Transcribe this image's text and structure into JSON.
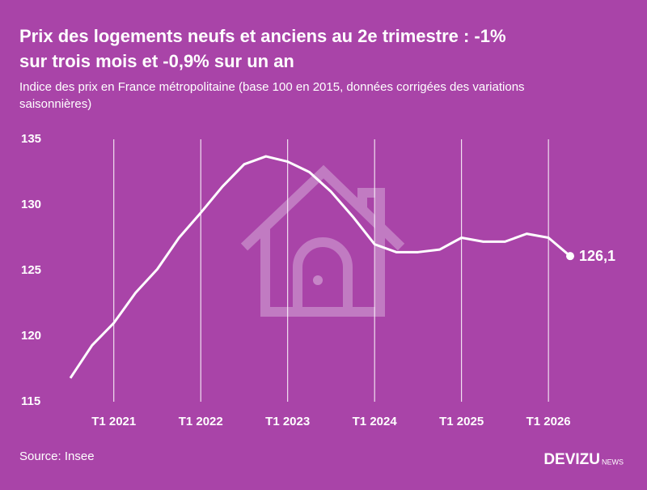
{
  "chart_data": {
    "type": "line",
    "title_lines": [
      "Prix des logements neufs et anciens au 2e trimestre : -1%",
      "sur trois mois et -0,9% sur un an"
    ],
    "subtitle_lines": [
      "Indice des prix en France métropolitaine (base 100 en 2015, données corrigées des variations",
      "saisonnières)"
    ],
    "source": "Source: Insee",
    "brand": "DEVIZU",
    "brand_suffix": "NEWS",
    "categories": [
      null,
      null,
      "T1 2021",
      null,
      null,
      null,
      "T1 2022",
      null,
      null,
      null,
      "T1 2023",
      null,
      null,
      null,
      "T1 2024",
      null,
      null,
      null,
      "T1 2025",
      null,
      null,
      null,
      "T1 2026",
      null
    ],
    "series": [
      {
        "color": "#ffffff",
        "values": [
          116.8,
          119.3,
          121.0,
          123.3,
          125.1,
          127.5,
          129.4,
          131.4,
          133.1,
          133.7,
          133.3,
          132.5,
          131.0,
          129.1,
          127.0,
          126.4,
          126.4,
          126.6,
          127.5,
          127.2,
          127.2,
          127.8,
          127.5,
          126.1
        ],
        "value_labels": [
          null,
          null,
          null,
          null,
          null,
          null,
          null,
          null,
          null,
          null,
          null,
          null,
          null,
          null,
          null,
          null,
          null,
          null,
          null,
          null,
          null,
          null,
          null,
          "126,1"
        ]
      }
    ],
    "ylim": [
      115,
      135
    ],
    "yticks": [
      115,
      120,
      125,
      130,
      135
    ],
    "grid": true
  }
}
